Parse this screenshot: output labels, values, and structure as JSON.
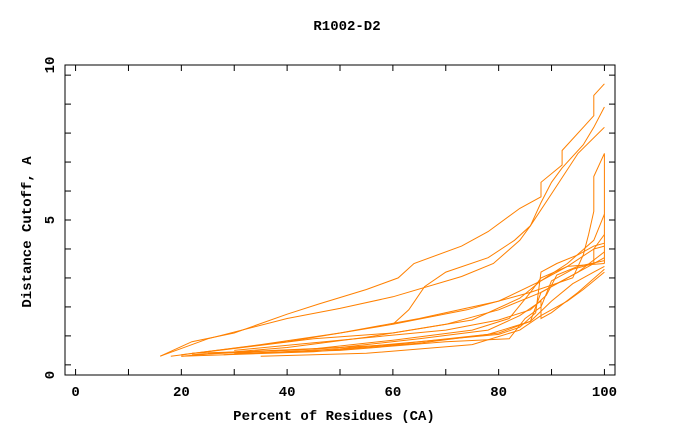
{
  "chart_data": {
    "type": "line",
    "title": "R1002-D2",
    "xlabel": "Percent of Residues (CA)",
    "ylabel": "Distance Cutoff, A",
    "xlim": [
      -2,
      102
    ],
    "ylim": [
      -0.35,
      10.35
    ],
    "xticks": [
      0,
      20,
      40,
      60,
      80,
      100
    ],
    "yticks": [
      0,
      5,
      10
    ],
    "grid": false,
    "legend": "none",
    "line_color": "#ff8000",
    "series": [
      {
        "points": [
          [
            16,
            0.3
          ],
          [
            22,
            0.8
          ],
          [
            30,
            1.1
          ],
          [
            40,
            1.75
          ],
          [
            46,
            2.1
          ],
          [
            55,
            2.6
          ],
          [
            61,
            3.0
          ],
          [
            64,
            3.5
          ],
          [
            73,
            4.1
          ],
          [
            78,
            4.6
          ],
          [
            84,
            5.4
          ],
          [
            88,
            5.8
          ],
          [
            88,
            6.3
          ],
          [
            92,
            6.9
          ],
          [
            92,
            7.4
          ],
          [
            96,
            8.2
          ],
          [
            98,
            8.6
          ],
          [
            98,
            9.3
          ],
          [
            100,
            9.7
          ]
        ]
      },
      {
        "points": [
          [
            16,
            0.3
          ],
          [
            25,
            0.9
          ],
          [
            40,
            1.6
          ],
          [
            50,
            1.95
          ],
          [
            60,
            2.35
          ],
          [
            73,
            3.05
          ],
          [
            79,
            3.5
          ],
          [
            84,
            4.3
          ],
          [
            86,
            4.8
          ],
          [
            90,
            5.9
          ],
          [
            95,
            7.3
          ],
          [
            100,
            8.2
          ]
        ]
      },
      {
        "points": [
          [
            60,
            1.4
          ],
          [
            63,
            1.9
          ],
          [
            66,
            2.7
          ],
          [
            70,
            3.2
          ],
          [
            78,
            3.7
          ],
          [
            83,
            4.3
          ],
          [
            86,
            4.8
          ],
          [
            88,
            5.6
          ],
          [
            90,
            6.3
          ],
          [
            92,
            6.8
          ],
          [
            96,
            7.6
          ],
          [
            98,
            8.2
          ],
          [
            100,
            8.9
          ]
        ]
      },
      {
        "points": [
          [
            20,
            0.35
          ],
          [
            40,
            0.8
          ],
          [
            60,
            1.4
          ],
          [
            74,
            1.9
          ],
          [
            86,
            2.5
          ],
          [
            94,
            3.0
          ],
          [
            96,
            3.8
          ],
          [
            97,
            4.5
          ],
          [
            98,
            5.3
          ],
          [
            98,
            6.5
          ],
          [
            100,
            7.3
          ],
          [
            100,
            3.5
          ]
        ]
      },
      {
        "points": [
          [
            18,
            0.3
          ],
          [
            35,
            0.7
          ],
          [
            50,
            1.1
          ],
          [
            65,
            1.6
          ],
          [
            80,
            2.2
          ],
          [
            88,
            2.9
          ],
          [
            93,
            3.5
          ],
          [
            98,
            4.3
          ],
          [
            100,
            5.2
          ]
        ]
      },
      {
        "points": [
          [
            20,
            0.3
          ],
          [
            40,
            0.6
          ],
          [
            55,
            0.95
          ],
          [
            70,
            1.4
          ],
          [
            80,
            1.9
          ],
          [
            88,
            2.5
          ],
          [
            95,
            3.2
          ],
          [
            100,
            3.9
          ]
        ]
      },
      {
        "points": [
          [
            22,
            0.35
          ],
          [
            45,
            0.55
          ],
          [
            60,
            0.85
          ],
          [
            75,
            1.2
          ],
          [
            82,
            1.6
          ],
          [
            86,
            2.5
          ],
          [
            88,
            3.0
          ],
          [
            93,
            3.4
          ],
          [
            98,
            4.0
          ],
          [
            100,
            4.5
          ]
        ]
      },
      {
        "points": [
          [
            25,
            0.4
          ],
          [
            50,
            0.6
          ],
          [
            65,
            0.9
          ],
          [
            78,
            1.2
          ],
          [
            84,
            1.7
          ],
          [
            88,
            2.2
          ],
          [
            88,
            1.6
          ],
          [
            90,
            1.8
          ],
          [
            95,
            2.5
          ],
          [
            100,
            3.3
          ]
        ]
      },
      {
        "points": [
          [
            30,
            0.4
          ],
          [
            50,
            0.5
          ],
          [
            70,
            0.8
          ],
          [
            82,
            0.9
          ],
          [
            85,
            1.6
          ],
          [
            88,
            2.0
          ],
          [
            90,
            2.9
          ],
          [
            94,
            3.3
          ],
          [
            98,
            3.5
          ],
          [
            98,
            4.0
          ],
          [
            100,
            4.1
          ]
        ]
      },
      {
        "points": [
          [
            20,
            0.3
          ],
          [
            45,
            0.45
          ],
          [
            65,
            0.75
          ],
          [
            80,
            1.1
          ],
          [
            86,
            1.5
          ],
          [
            88,
            2.5
          ],
          [
            92,
            2.9
          ],
          [
            96,
            3.3
          ],
          [
            100,
            3.7
          ]
        ]
      },
      {
        "points": [
          [
            28,
            0.35
          ],
          [
            50,
            0.55
          ],
          [
            68,
            0.85
          ],
          [
            80,
            1.05
          ],
          [
            84,
            1.3
          ],
          [
            87,
            1.8
          ],
          [
            88,
            3.2
          ],
          [
            91,
            3.5
          ],
          [
            95,
            3.8
          ],
          [
            98,
            4.1
          ],
          [
            100,
            4.2
          ]
        ]
      },
      {
        "points": [
          [
            35,
            0.3
          ],
          [
            55,
            0.4
          ],
          [
            75,
            0.7
          ],
          [
            84,
            1.2
          ],
          [
            88,
            1.7
          ],
          [
            93,
            2.2
          ],
          [
            96,
            2.6
          ],
          [
            100,
            3.2
          ]
        ]
      },
      {
        "points": [
          [
            25,
            0.45
          ],
          [
            45,
            0.9
          ],
          [
            60,
            1.1
          ],
          [
            75,
            1.55
          ],
          [
            84,
            2.3
          ],
          [
            88,
            2.9
          ],
          [
            93,
            3.4
          ],
          [
            100,
            3.5
          ]
        ]
      },
      {
        "points": [
          [
            30,
            0.5
          ],
          [
            50,
            0.85
          ],
          [
            70,
            1.2
          ],
          [
            80,
            1.55
          ],
          [
            86,
            1.9
          ],
          [
            89,
            2.4
          ],
          [
            91,
            3.1
          ],
          [
            95,
            3.4
          ],
          [
            100,
            3.6
          ]
        ]
      },
      {
        "points": [
          [
            22,
            0.4
          ],
          [
            40,
            0.5
          ],
          [
            60,
            0.7
          ],
          [
            78,
            1.05
          ],
          [
            86,
            1.5
          ],
          [
            90,
            2.2
          ],
          [
            94,
            2.8
          ],
          [
            98,
            3.2
          ],
          [
            100,
            3.4
          ]
        ]
      }
    ]
  }
}
